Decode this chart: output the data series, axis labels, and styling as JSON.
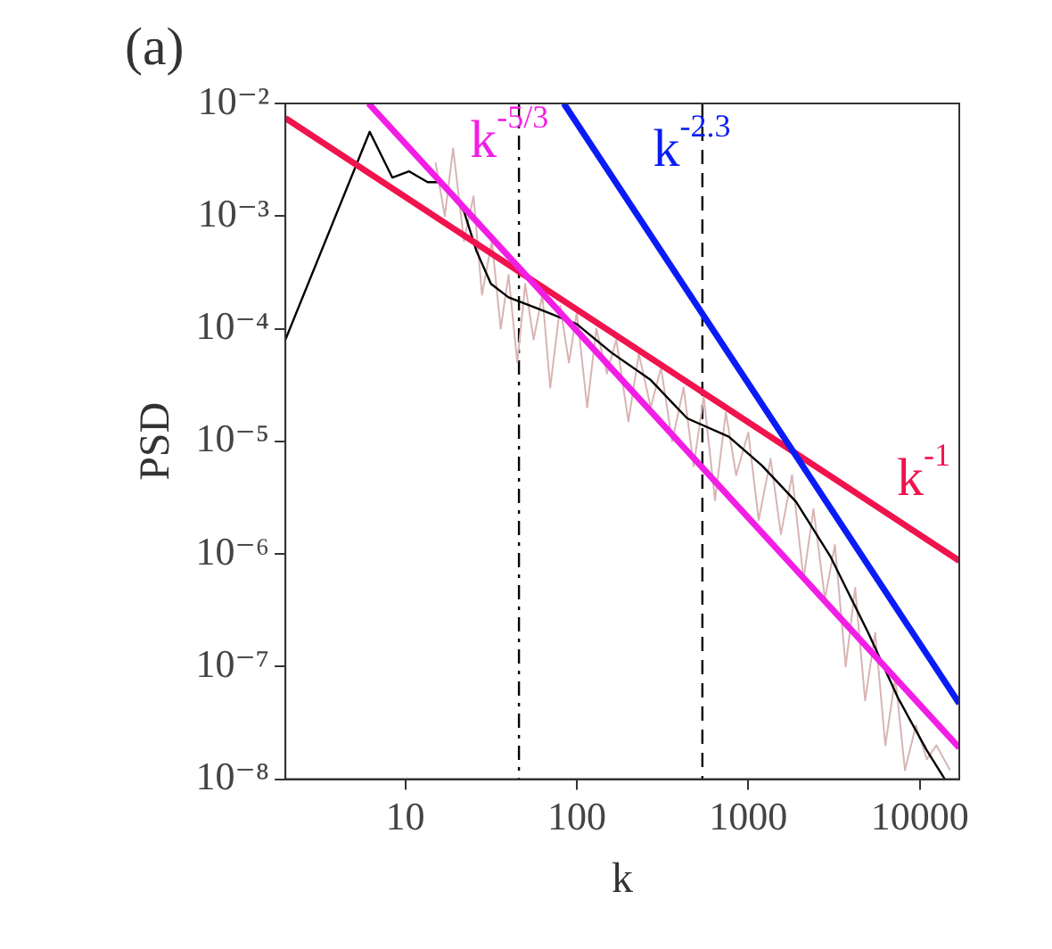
{
  "chart_data": {
    "type": "line",
    "title": "(a)",
    "xlabel": "k",
    "ylabel": "PSD",
    "log": "xy",
    "grid": false,
    "legend": false,
    "marker": "none",
    "xlim": [
      2,
      17000
    ],
    "ylim": [
      1e-08,
      0.01
    ],
    "xticks": [
      10,
      100,
      1000,
      10000
    ],
    "yticks": [
      {
        "value": 1e-08,
        "label": "10⁻⁸"
      },
      {
        "value": 1e-07,
        "label": "10⁻⁷"
      },
      {
        "value": 1e-06,
        "label": "10⁻⁶"
      },
      {
        "value": 1e-05,
        "label": "10⁻⁵"
      },
      {
        "value": 0.0001,
        "label": "10⁻⁴"
      },
      {
        "value": 0.001,
        "label": "10⁻³"
      },
      {
        "value": 0.01,
        "label": "10⁻²"
      }
    ],
    "series": [
      {
        "color": "#d9b4b4",
        "x": [
          15,
          17,
          19,
          22,
          25,
          28,
          32,
          36,
          40,
          45,
          50,
          56,
          63,
          70,
          80,
          90,
          100,
          115,
          130,
          150,
          170,
          200,
          230,
          270,
          310,
          360,
          420,
          480,
          550,
          640,
          740,
          850,
          1000,
          1150,
          1350,
          1550,
          1800,
          2100,
          2400,
          2800,
          3200,
          3700,
          4200,
          4800,
          5500,
          6300,
          7200,
          8200,
          9500,
          11000,
          12500,
          15000
        ],
        "values": [
          0.003,
          0.001,
          0.004,
          0.0006,
          0.0015,
          0.0002,
          0.0006,
          0.0001,
          0.0003,
          5e-05,
          0.00025,
          8e-05,
          0.0002,
          3e-05,
          0.00016,
          5e-05,
          0.00014,
          2e-05,
          0.0001,
          4e-05,
          8e-05,
          1.5e-05,
          6e-05,
          2e-05,
          4.5e-05,
          1e-05,
          3e-05,
          6e-06,
          2.5e-05,
          3e-06,
          1.8e-05,
          5e-06,
          1.2e-05,
          2e-06,
          7e-06,
          1.5e-06,
          5e-06,
          6e-07,
          2.5e-06,
          4e-07,
          1.2e-06,
          1e-07,
          5e-07,
          5e-08,
          2e-07,
          2e-08,
          8e-08,
          1.2e-08,
          3e-08,
          1.5e-08,
          2e-08,
          1.2e-08
        ]
      },
      {
        "color": "#000000",
        "x": [
          2,
          6.2,
          8.4,
          10.5,
          13.5,
          16.4,
          22,
          26,
          31.6,
          40,
          60,
          100,
          160,
          270,
          440,
          770,
          1200,
          1900,
          3000,
          5000,
          7500,
          11000,
          14000
        ],
        "values": [
          8e-05,
          0.0056,
          0.0022,
          0.0025,
          0.002,
          0.002,
          0.0011,
          0.00049,
          0.00025,
          0.00019,
          0.00015,
          0.00011,
          6.1e-05,
          3.5e-05,
          1.6e-05,
          1.1e-05,
          6.1e-06,
          2.9e-06,
          9.6e-07,
          2e-07,
          5.2e-08,
          1.8e-08,
          1e-08
        ]
      },
      {
        "name": "k$^{-1}$",
        "color": "#f0134d",
        "x": [
          2,
          17000
        ],
        "values": [
          0.0074,
          8.7e-07
        ]
      },
      {
        "name": "k$^{-5/3}$",
        "color": "#f21ee6",
        "x": [
          6.1,
          17000
        ],
        "values": [
          0.01,
          1.9e-08
        ]
      },
      {
        "name": "k$^{-2.3}$",
        "color": "#0a1cf5",
        "x": [
          84,
          17000
        ],
        "values": [
          0.01,
          4.7e-08
        ]
      }
    ],
    "ref_lines": [
      {
        "axis": "x",
        "value": 46,
        "line_style": "dashdot",
        "color": "#000000"
      },
      {
        "axis": "x",
        "value": 540,
        "line_style": "dashed",
        "color": "#000000"
      }
    ]
  }
}
